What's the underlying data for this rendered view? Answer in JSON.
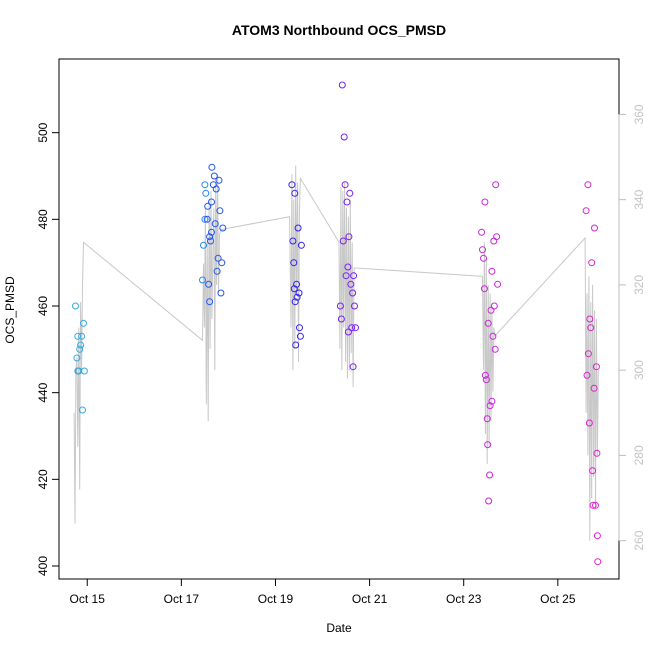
{
  "chart_data": {
    "type": "scatter",
    "title": "ATOM3 Northbound OCS_PMSD",
    "xlabel": "Date",
    "ylabel": "OCS_PMSD",
    "x_ticks": [
      "Oct 15",
      "Oct 17",
      "Oct 19",
      "Oct 21",
      "Oct 23",
      "Oct 25"
    ],
    "x_tick_values": [
      15,
      17,
      19,
      21,
      23,
      25
    ],
    "xlim": [
      14.4,
      26.3
    ],
    "ylim": [
      397,
      517
    ],
    "y_ticks": [
      400,
      420,
      440,
      460,
      480,
      500
    ],
    "y2lim": [
      251,
      373
    ],
    "y2_ticks": [
      260,
      280,
      300,
      320,
      340,
      360
    ],
    "grid": false,
    "point_colors": [
      "#33aadd",
      "#2288ee",
      "#2255ee",
      "#3322ee",
      "#7722ee",
      "#bb22ee",
      "#cc22dd",
      "#dd22cc"
    ],
    "line_color": "#c8c8c8",
    "points": [
      {
        "x": 14.75,
        "y": 460
      },
      {
        "x": 14.78,
        "y": 448
      },
      {
        "x": 14.8,
        "y": 453
      },
      {
        "x": 14.8,
        "y": 445
      },
      {
        "x": 14.82,
        "y": 445
      },
      {
        "x": 14.84,
        "y": 450
      },
      {
        "x": 14.86,
        "y": 451
      },
      {
        "x": 14.88,
        "y": 453
      },
      {
        "x": 14.9,
        "y": 436
      },
      {
        "x": 14.92,
        "y": 456
      },
      {
        "x": 14.94,
        "y": 445
      },
      {
        "x": 17.45,
        "y": 466
      },
      {
        "x": 17.47,
        "y": 474
      },
      {
        "x": 17.5,
        "y": 480
      },
      {
        "x": 17.5,
        "y": 488
      },
      {
        "x": 17.52,
        "y": 486
      },
      {
        "x": 17.55,
        "y": 480
      },
      {
        "x": 17.56,
        "y": 483
      },
      {
        "x": 17.58,
        "y": 465
      },
      {
        "x": 17.6,
        "y": 461
      },
      {
        "x": 17.6,
        "y": 476
      },
      {
        "x": 17.62,
        "y": 475
      },
      {
        "x": 17.64,
        "y": 477
      },
      {
        "x": 17.64,
        "y": 484
      },
      {
        "x": 17.65,
        "y": 492
      },
      {
        "x": 17.68,
        "y": 488
      },
      {
        "x": 17.7,
        "y": 490
      },
      {
        "x": 17.72,
        "y": 479
      },
      {
        "x": 17.74,
        "y": 487
      },
      {
        "x": 17.76,
        "y": 468
      },
      {
        "x": 17.78,
        "y": 471
      },
      {
        "x": 17.8,
        "y": 489
      },
      {
        "x": 17.82,
        "y": 482
      },
      {
        "x": 17.84,
        "y": 463
      },
      {
        "x": 17.86,
        "y": 470
      },
      {
        "x": 17.88,
        "y": 478
      },
      {
        "x": 19.35,
        "y": 488
      },
      {
        "x": 19.37,
        "y": 475
      },
      {
        "x": 19.39,
        "y": 470
      },
      {
        "x": 19.4,
        "y": 464
      },
      {
        "x": 19.41,
        "y": 486
      },
      {
        "x": 19.42,
        "y": 461
      },
      {
        "x": 19.43,
        "y": 451
      },
      {
        "x": 19.45,
        "y": 465
      },
      {
        "x": 19.46,
        "y": 462
      },
      {
        "x": 19.48,
        "y": 478
      },
      {
        "x": 19.5,
        "y": 463
      },
      {
        "x": 19.51,
        "y": 455
      },
      {
        "x": 19.53,
        "y": 453
      },
      {
        "x": 19.55,
        "y": 474
      },
      {
        "x": 20.38,
        "y": 460
      },
      {
        "x": 20.4,
        "y": 457
      },
      {
        "x": 20.42,
        "y": 511
      },
      {
        "x": 20.44,
        "y": 475
      },
      {
        "x": 20.46,
        "y": 499
      },
      {
        "x": 20.48,
        "y": 488
      },
      {
        "x": 20.5,
        "y": 467
      },
      {
        "x": 20.52,
        "y": 484
      },
      {
        "x": 20.54,
        "y": 469
      },
      {
        "x": 20.55,
        "y": 454
      },
      {
        "x": 20.56,
        "y": 476
      },
      {
        "x": 20.58,
        "y": 486
      },
      {
        "x": 20.6,
        "y": 465
      },
      {
        "x": 20.62,
        "y": 455
      },
      {
        "x": 20.64,
        "y": 463
      },
      {
        "x": 20.65,
        "y": 446
      },
      {
        "x": 20.66,
        "y": 467
      },
      {
        "x": 20.68,
        "y": 460
      },
      {
        "x": 20.7,
        "y": 455
      },
      {
        "x": 23.38,
        "y": 477
      },
      {
        "x": 23.4,
        "y": 473
      },
      {
        "x": 23.42,
        "y": 471
      },
      {
        "x": 23.44,
        "y": 464
      },
      {
        "x": 23.45,
        "y": 484
      },
      {
        "x": 23.46,
        "y": 444
      },
      {
        "x": 23.48,
        "y": 443
      },
      {
        "x": 23.5,
        "y": 434
      },
      {
        "x": 23.51,
        "y": 428
      },
      {
        "x": 23.52,
        "y": 456
      },
      {
        "x": 23.53,
        "y": 415
      },
      {
        "x": 23.55,
        "y": 421
      },
      {
        "x": 23.56,
        "y": 437
      },
      {
        "x": 23.58,
        "y": 459
      },
      {
        "x": 23.6,
        "y": 438
      },
      {
        "x": 23.6,
        "y": 468
      },
      {
        "x": 23.62,
        "y": 453
      },
      {
        "x": 23.64,
        "y": 475
      },
      {
        "x": 23.65,
        "y": 460
      },
      {
        "x": 23.67,
        "y": 450
      },
      {
        "x": 23.68,
        "y": 488
      },
      {
        "x": 23.7,
        "y": 476
      },
      {
        "x": 23.72,
        "y": 465
      },
      {
        "x": 25.6,
        "y": 482
      },
      {
        "x": 25.62,
        "y": 444
      },
      {
        "x": 25.64,
        "y": 488
      },
      {
        "x": 25.65,
        "y": 449
      },
      {
        "x": 25.67,
        "y": 433
      },
      {
        "x": 25.68,
        "y": 457
      },
      {
        "x": 25.7,
        "y": 455
      },
      {
        "x": 25.72,
        "y": 470
      },
      {
        "x": 25.74,
        "y": 422
      },
      {
        "x": 25.75,
        "y": 414
      },
      {
        "x": 25.77,
        "y": 441
      },
      {
        "x": 25.78,
        "y": 478
      },
      {
        "x": 25.8,
        "y": 414
      },
      {
        "x": 25.82,
        "y": 446
      },
      {
        "x": 25.83,
        "y": 426
      },
      {
        "x": 25.84,
        "y": 407
      },
      {
        "x": 25.85,
        "y": 401
      }
    ],
    "line_path": [
      {
        "x": 14.72,
        "y2": 290
      },
      {
        "x": 14.74,
        "y2": 264
      },
      {
        "x": 14.76,
        "y2": 300
      },
      {
        "x": 14.78,
        "y2": 303
      },
      {
        "x": 14.8,
        "y2": 282
      },
      {
        "x": 14.82,
        "y2": 310
      },
      {
        "x": 14.84,
        "y2": 272
      },
      {
        "x": 14.86,
        "y2": 316
      },
      {
        "x": 14.88,
        "y2": 300
      },
      {
        "x": 14.9,
        "y2": 320
      },
      {
        "x": 14.92,
        "y2": 330
      },
      {
        "x": 17.45,
        "y2": 307
      },
      {
        "x": 17.47,
        "y2": 325
      },
      {
        "x": 17.49,
        "y2": 310
      },
      {
        "x": 17.51,
        "y2": 338
      },
      {
        "x": 17.53,
        "y2": 292
      },
      {
        "x": 17.55,
        "y2": 330
      },
      {
        "x": 17.57,
        "y2": 288
      },
      {
        "x": 17.59,
        "y2": 340
      },
      {
        "x": 17.61,
        "y2": 305
      },
      {
        "x": 17.63,
        "y2": 342
      },
      {
        "x": 17.65,
        "y2": 312
      },
      {
        "x": 17.67,
        "y2": 328
      },
      {
        "x": 17.69,
        "y2": 338
      },
      {
        "x": 17.71,
        "y2": 300
      },
      {
        "x": 17.73,
        "y2": 344
      },
      {
        "x": 17.75,
        "y2": 320
      },
      {
        "x": 17.77,
        "y2": 346
      },
      {
        "x": 17.79,
        "y2": 318
      },
      {
        "x": 17.81,
        "y2": 332
      },
      {
        "x": 17.85,
        "y2": 333
      },
      {
        "x": 19.3,
        "y2": 336
      },
      {
        "x": 19.33,
        "y2": 310
      },
      {
        "x": 19.35,
        "y2": 346
      },
      {
        "x": 19.37,
        "y2": 300
      },
      {
        "x": 19.39,
        "y2": 340
      },
      {
        "x": 19.41,
        "y2": 305
      },
      {
        "x": 19.43,
        "y2": 348
      },
      {
        "x": 19.45,
        "y2": 318
      },
      {
        "x": 19.47,
        "y2": 344
      },
      {
        "x": 19.49,
        "y2": 302
      },
      {
        "x": 19.51,
        "y2": 338
      },
      {
        "x": 19.53,
        "y2": 345
      },
      {
        "x": 20.35,
        "y2": 330
      },
      {
        "x": 20.37,
        "y2": 305
      },
      {
        "x": 20.39,
        "y2": 343
      },
      {
        "x": 20.41,
        "y2": 300
      },
      {
        "x": 20.43,
        "y2": 342
      },
      {
        "x": 20.45,
        "y2": 310
      },
      {
        "x": 20.47,
        "y2": 344
      },
      {
        "x": 20.49,
        "y2": 302
      },
      {
        "x": 20.51,
        "y2": 338
      },
      {
        "x": 20.53,
        "y2": 298
      },
      {
        "x": 20.55,
        "y2": 336
      },
      {
        "x": 20.57,
        "y2": 300
      },
      {
        "x": 20.59,
        "y2": 340
      },
      {
        "x": 20.61,
        "y2": 304
      },
      {
        "x": 20.63,
        "y2": 330
      },
      {
        "x": 20.65,
        "y2": 296
      },
      {
        "x": 20.67,
        "y2": 324
      },
      {
        "x": 23.4,
        "y2": 322
      },
      {
        "x": 23.42,
        "y2": 300
      },
      {
        "x": 23.44,
        "y2": 330
      },
      {
        "x": 23.46,
        "y2": 285
      },
      {
        "x": 23.48,
        "y2": 326
      },
      {
        "x": 23.5,
        "y2": 278
      },
      {
        "x": 23.52,
        "y2": 320
      },
      {
        "x": 23.54,
        "y2": 282
      },
      {
        "x": 23.56,
        "y2": 318
      },
      {
        "x": 23.58,
        "y2": 288
      },
      {
        "x": 23.6,
        "y2": 315
      },
      {
        "x": 23.62,
        "y2": 295
      },
      {
        "x": 23.64,
        "y2": 310
      },
      {
        "x": 23.66,
        "y2": 308
      },
      {
        "x": 25.58,
        "y2": 331
      },
      {
        "x": 25.6,
        "y2": 290
      },
      {
        "x": 25.62,
        "y2": 318
      },
      {
        "x": 25.64,
        "y2": 280
      },
      {
        "x": 25.66,
        "y2": 322
      },
      {
        "x": 25.68,
        "y2": 260
      },
      {
        "x": 25.7,
        "y2": 316
      },
      {
        "x": 25.72,
        "y2": 270
      },
      {
        "x": 25.74,
        "y2": 320
      },
      {
        "x": 25.76,
        "y2": 275
      },
      {
        "x": 25.78,
        "y2": 314
      },
      {
        "x": 25.8,
        "y2": 268
      },
      {
        "x": 25.82,
        "y2": 312
      },
      {
        "x": 25.84,
        "y2": 280
      },
      {
        "x": 25.86,
        "y2": 300
      }
    ]
  }
}
